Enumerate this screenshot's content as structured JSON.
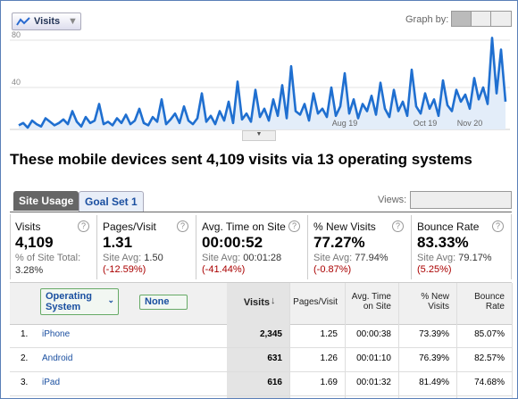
{
  "graph_by": "Graph by:",
  "chart_data": {
    "type": "line",
    "categories": [
      null,
      null,
      null,
      null,
      null,
      null,
      null,
      null,
      null,
      null,
      null,
      null,
      null,
      null,
      null,
      null,
      null,
      null,
      null,
      null,
      null,
      null,
      null,
      null,
      null,
      null,
      null,
      null,
      null,
      null,
      null,
      null,
      null,
      null,
      null,
      null,
      null,
      null,
      null,
      null,
      null,
      null,
      null,
      null,
      null,
      null,
      null,
      null,
      null,
      null,
      null,
      null,
      null,
      null,
      null,
      null,
      null,
      null,
      null,
      null,
      null,
      null,
      null,
      null,
      null,
      null,
      null,
      null,
      null,
      null,
      null,
      null,
      null,
      "Aug 19",
      null,
      null,
      null,
      null,
      null,
      null,
      null,
      null,
      null,
      null,
      null,
      null,
      null,
      null,
      null,
      null,
      null,
      "Oct 19",
      null,
      null,
      null,
      null,
      null,
      null,
      null,
      null,
      null,
      "Nov 20",
      null,
      null,
      null,
      null,
      null,
      null,
      null,
      null
    ],
    "series": [
      {
        "name": "Visits",
        "color": "#1f6fd0",
        "values": [
          8,
          10,
          6,
          12,
          9,
          7,
          14,
          11,
          8,
          10,
          13,
          9,
          20,
          11,
          7,
          15,
          10,
          12,
          26,
          9,
          11,
          8,
          14,
          10,
          17,
          9,
          12,
          22,
          10,
          8,
          15,
          11,
          30,
          9,
          13,
          18,
          10,
          24,
          12,
          9,
          14,
          35,
          11,
          16,
          9,
          20,
          12,
          28,
          10,
          45,
          13,
          18,
          11,
          38,
          15,
          22,
          12,
          30,
          16,
          42,
          14,
          58,
          20,
          17,
          26,
          12,
          35,
          18,
          22,
          15,
          40,
          16,
          24,
          52,
          18,
          30,
          14,
          26,
          20,
          33,
          17,
          44,
          22,
          15,
          38,
          20,
          28,
          16,
          55,
          24,
          18,
          35,
          22,
          30,
          16,
          46,
          25,
          20,
          38,
          28,
          34,
          22,
          48,
          30,
          40,
          26,
          82,
          35,
          72,
          28
        ]
      }
    ],
    "ylim": [
      0,
      84
    ],
    "yticks": [
      40,
      80
    ],
    "grid": true
  },
  "headline": "These mobile devices sent 4,109 visits via 13 operating systems",
  "tabs": [
    "Site Usage",
    "Goal Set 1"
  ],
  "views": "Views:",
  "metrics": [
    {
      "label": "Visits",
      "value": "4,109",
      "sub_label": "% of Site Total:",
      "sub_value": "3.28%"
    },
    {
      "label": "Pages/Visit",
      "value": "1.31",
      "sub_label": "Site Avg:",
      "sub_value": "1.50",
      "change": "(-12.59%)"
    },
    {
      "label": "Avg. Time on Site",
      "value": "00:00:52",
      "sub_label": "Site Avg:",
      "sub_value": "00:01:28",
      "change": "(-41.44%)"
    },
    {
      "label": "% New Visits",
      "value": "77.27%",
      "sub_label": "Site Avg:",
      "sub_value": "77.94%",
      "change": "(-0.87%)"
    },
    {
      "label": "Bounce Rate",
      "value": "83.33%",
      "sub_label": "Site Avg:",
      "sub_value": "79.17%",
      "change": "(5.25%)"
    }
  ],
  "table": {
    "dimension": "Operating System",
    "secondary": "None",
    "columns": [
      "Visits",
      "Pages/Visit",
      "Avg. Time on Site",
      "% New Visits",
      "Bounce Rate"
    ],
    "rows": [
      [
        "1.",
        "iPhone",
        "2,345",
        "1.25",
        "00:00:38",
        "73.39%",
        "85.07%"
      ],
      [
        "2.",
        "Android",
        "631",
        "1.26",
        "00:01:10",
        "76.39%",
        "82.57%"
      ],
      [
        "3.",
        "iPad",
        "616",
        "1.69",
        "00:01:32",
        "81.49%",
        "74.68%"
      ]
    ]
  }
}
